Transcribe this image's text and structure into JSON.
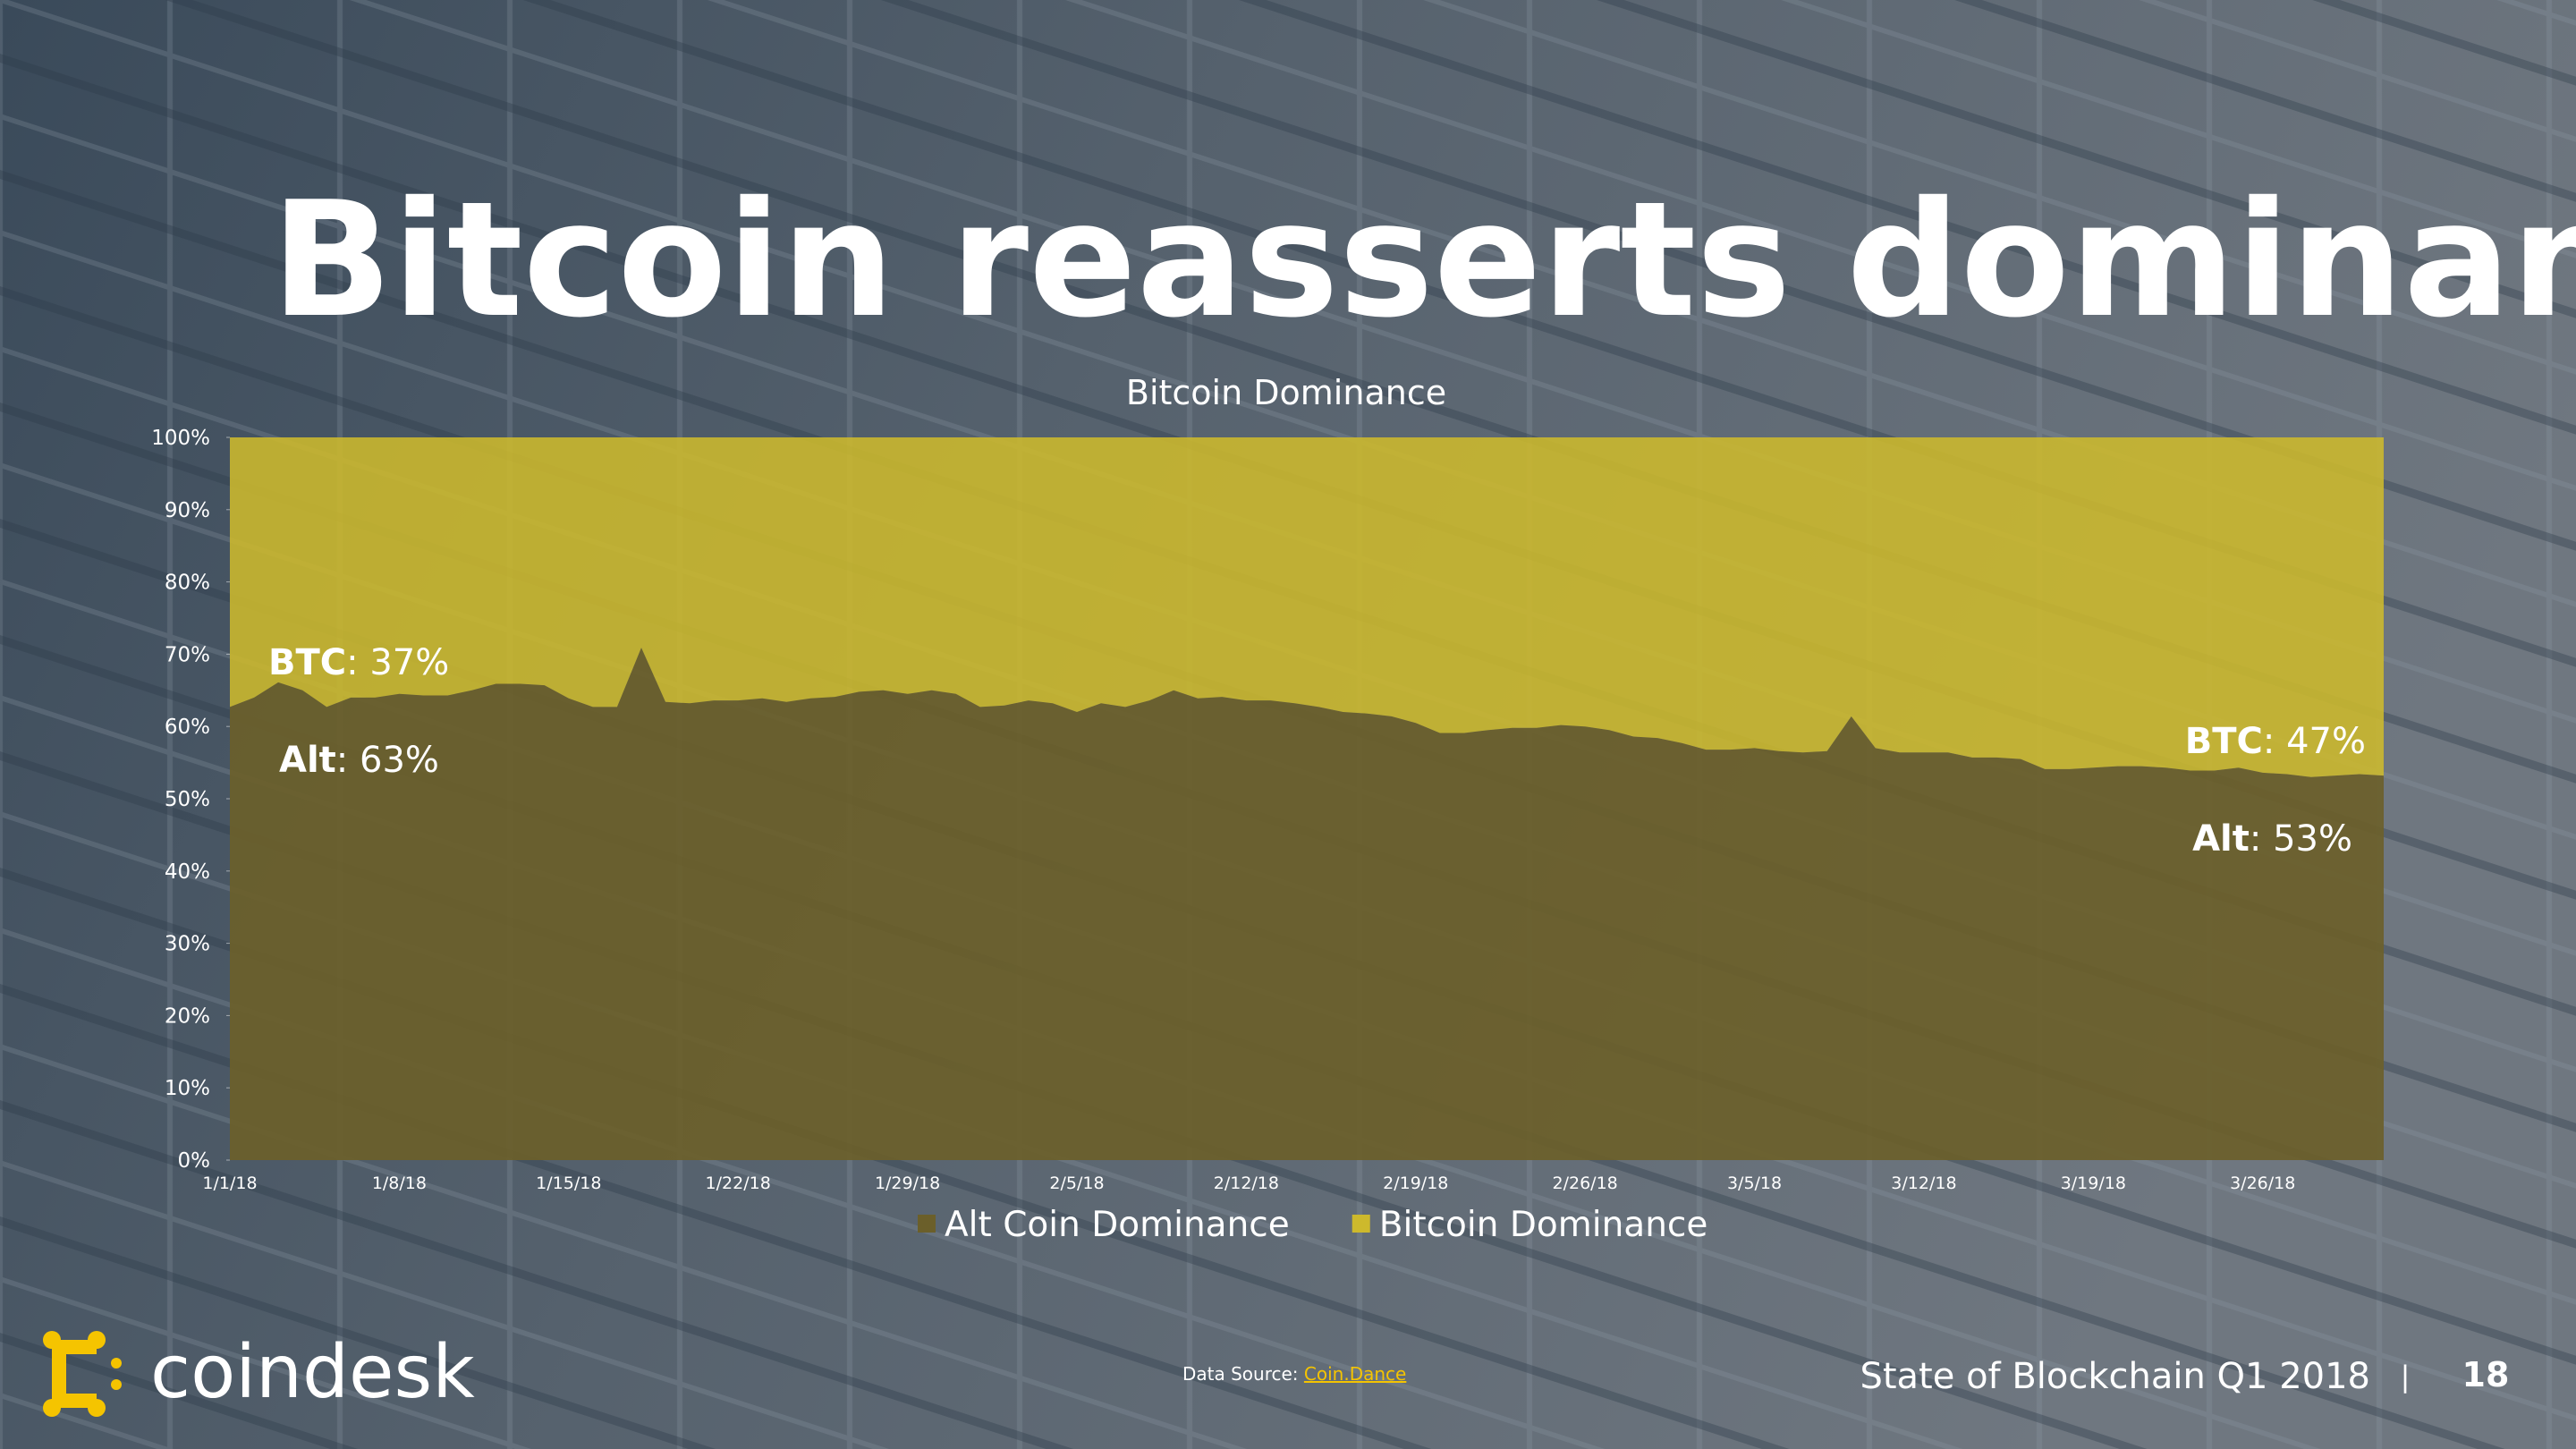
{
  "chart_data": {
    "type": "stacked_area",
    "slide_title": "Bitcoin reasserts dominance",
    "slide_title_end": ".",
    "title": "Bitcoin Dominance",
    "x": [
      "1/1/18",
      null,
      null,
      null,
      null,
      null,
      null,
      "1/8/18",
      null,
      null,
      null,
      null,
      null,
      null,
      "1/15/18",
      null,
      null,
      null,
      null,
      null,
      null,
      "1/22/18",
      null,
      null,
      null,
      null,
      null,
      null,
      "1/29/18",
      null,
      null,
      null,
      null,
      null,
      null,
      "2/5/18",
      null,
      null,
      null,
      null,
      null,
      null,
      "2/12/18",
      null,
      null,
      null,
      null,
      null,
      null,
      "2/19/18",
      null,
      null,
      null,
      null,
      null,
      null,
      "2/26/18",
      null,
      null,
      null,
      null,
      null,
      null,
      "3/5/18",
      null,
      null,
      null,
      null,
      null,
      null,
      "3/12/18",
      null,
      null,
      null,
      null,
      null,
      null,
      "3/19/18",
      null,
      null,
      null,
      null,
      null,
      null,
      "3/26/18",
      null,
      null,
      null,
      null,
      null
    ],
    "series": [
      {
        "name": "Alt Coin Dominance",
        "color": "#6b5f2a",
        "values": [
          62.7,
          64.0,
          66.1,
          65.0,
          62.7,
          64.0,
          64.0,
          64.5,
          64.3,
          64.3,
          65.0,
          65.9,
          65.9,
          65.7,
          63.9,
          62.7,
          62.7,
          70.9,
          63.4,
          63.2,
          63.6,
          63.6,
          63.9,
          63.4,
          63.9,
          64.1,
          64.8,
          65.0,
          64.5,
          65.0,
          64.5,
          62.7,
          62.9,
          63.6,
          63.2,
          62.0,
          63.2,
          62.7,
          63.6,
          65.0,
          63.9,
          64.1,
          63.6,
          63.6,
          63.2,
          62.7,
          62.0,
          61.8,
          61.4,
          60.5,
          59.1,
          59.1,
          59.5,
          59.8,
          59.8,
          60.2,
          60.0,
          59.5,
          58.6,
          58.4,
          57.7,
          56.8,
          56.8,
          57.0,
          56.6,
          56.4,
          56.6,
          61.4,
          57.0,
          56.4,
          56.4,
          56.4,
          55.7,
          55.7,
          55.5,
          54.1,
          54.1,
          54.3,
          54.5,
          54.5,
          54.3,
          53.9,
          53.9,
          54.3,
          53.6,
          53.4,
          53.0,
          53.2,
          53.4,
          53.2
        ]
      },
      {
        "name": "Bitcoin Dominance",
        "color": "#cdb92c",
        "values": [
          37.3,
          36.0,
          33.9,
          35.0,
          37.3,
          36.0,
          36.0,
          35.5,
          35.7,
          35.7,
          35.0,
          34.1,
          34.1,
          34.3,
          36.1,
          37.3,
          37.3,
          29.1,
          36.6,
          36.8,
          36.4,
          36.4,
          36.1,
          36.6,
          36.1,
          35.9,
          35.2,
          35.0,
          35.5,
          35.0,
          35.5,
          37.3,
          37.1,
          36.4,
          36.8,
          38.0,
          36.8,
          37.3,
          36.4,
          35.0,
          36.1,
          35.9,
          36.4,
          36.4,
          36.8,
          37.3,
          38.0,
          38.2,
          38.6,
          39.5,
          40.9,
          40.9,
          40.5,
          40.2,
          40.2,
          39.8,
          40.0,
          40.5,
          41.4,
          41.6,
          42.3,
          43.2,
          43.2,
          43.0,
          43.4,
          43.6,
          43.4,
          38.6,
          43.0,
          43.6,
          43.6,
          43.6,
          44.3,
          44.3,
          44.5,
          45.9,
          45.9,
          45.7,
          45.5,
          45.5,
          45.7,
          46.1,
          46.1,
          45.7,
          46.4,
          46.6,
          47.0,
          46.8,
          46.6,
          46.8
        ]
      }
    ],
    "ylim": [
      0,
      100
    ],
    "yticks": [
      {
        "value": 0,
        "label": "0%"
      },
      {
        "value": 10,
        "label": "10%"
      },
      {
        "value": 20,
        "label": "20%"
      },
      {
        "value": 30,
        "label": "30%"
      },
      {
        "value": 40,
        "label": "40%"
      },
      {
        "value": 50,
        "label": "50%"
      },
      {
        "value": 60,
        "label": "60%"
      },
      {
        "value": 70,
        "label": "70%"
      },
      {
        "value": 80,
        "label": "80%"
      },
      {
        "value": 90,
        "label": "90%"
      },
      {
        "value": 100,
        "label": "100%"
      }
    ],
    "annotations": [
      {
        "bold": "BTC",
        "text": ": 37%"
      },
      {
        "bold": "Alt",
        "text": ": 63%"
      },
      {
        "bold": "BTC",
        "text": ": 47%"
      },
      {
        "bold": "Alt",
        "text": ": 53%"
      }
    ],
    "legend": "bottom"
  },
  "footer": {
    "brand": "coindesk",
    "source_label": "Data Source: ",
    "source_link": "Coin.Dance",
    "report": "State of Blockchain Q1 2018",
    "separator": "|",
    "page": "18"
  }
}
